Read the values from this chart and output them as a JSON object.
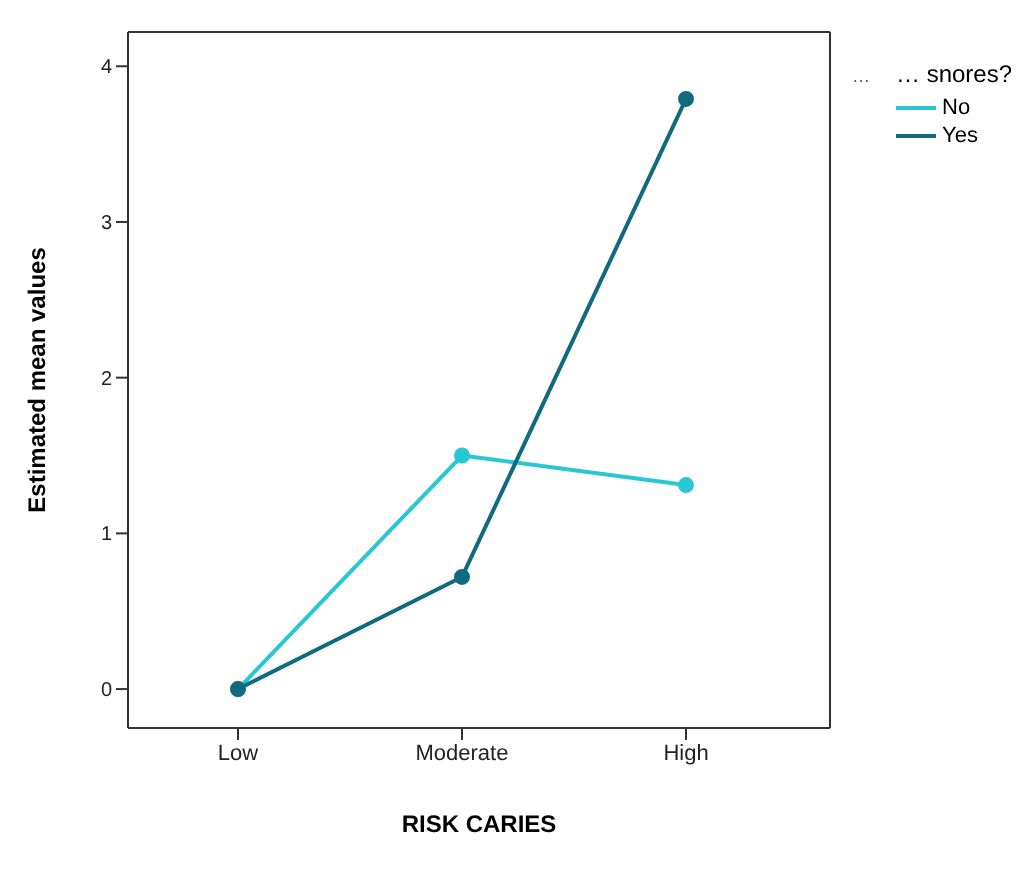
{
  "chart_data": {
    "type": "line",
    "xlabel": "RISK CARIES",
    "ylabel": "Estimated mean values",
    "legend_title": "… snores?",
    "annotations": [
      "…"
    ],
    "categories": [
      "Low",
      "Moderate",
      "High"
    ],
    "series": [
      {
        "name": "No",
        "color": "#29c7d3",
        "values": [
          0,
          1.5,
          1.31
        ]
      },
      {
        "name": "Yes",
        "color": "#0f6b7d",
        "values": [
          0,
          0.72,
          3.79
        ]
      }
    ],
    "ylim": [
      -0.25,
      4.22
    ],
    "yticks": [
      0,
      1,
      2,
      3,
      4
    ],
    "grid": false,
    "legend": "top right",
    "marker": "circle",
    "line_style": "solid"
  }
}
